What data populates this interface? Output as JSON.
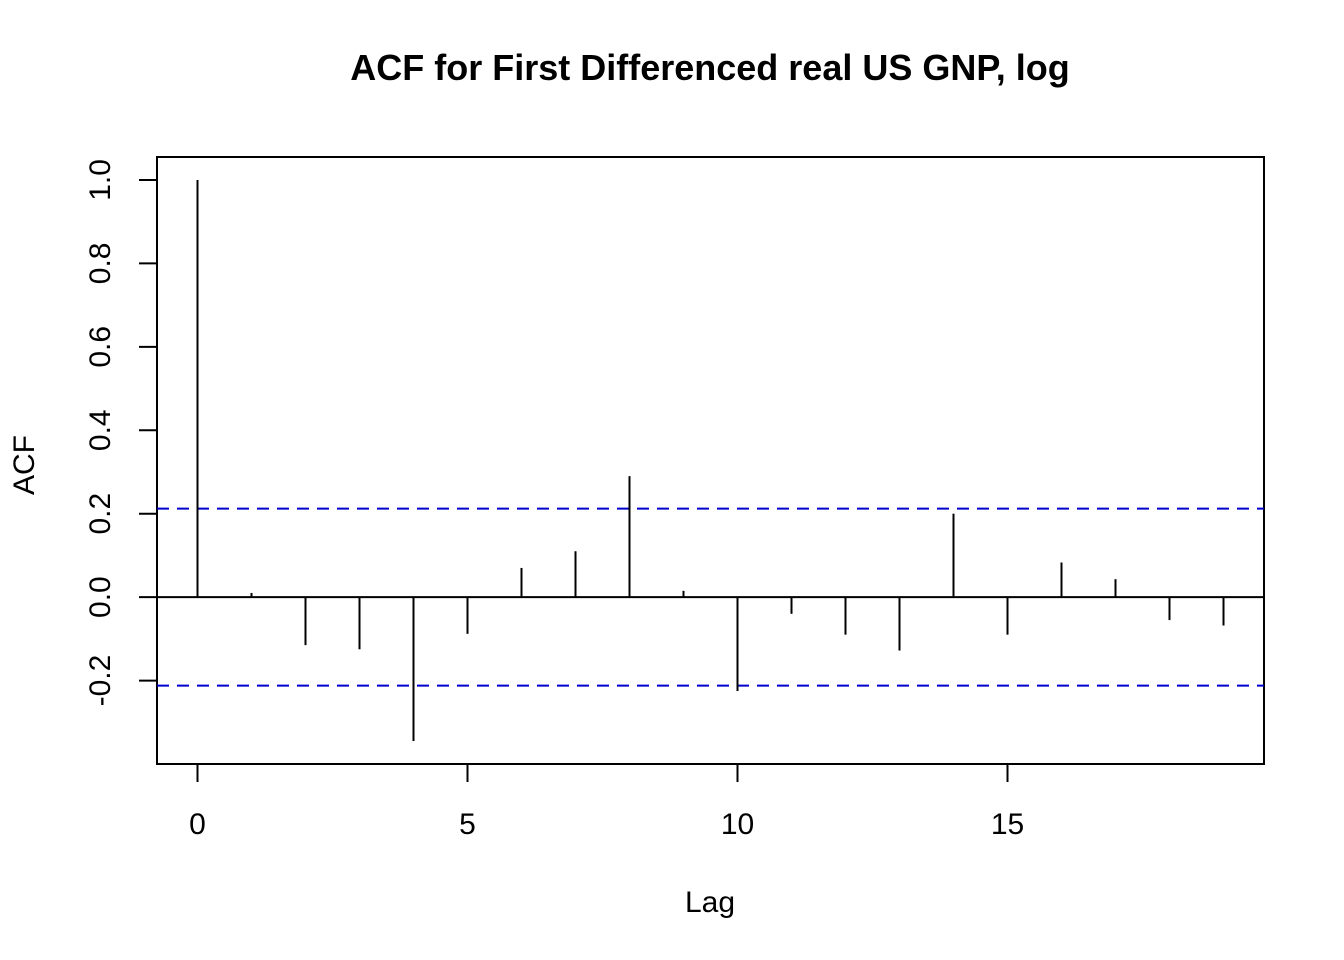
{
  "chart_data": {
    "type": "bar",
    "title": "ACF for First Differenced real US GNP, log",
    "xlabel": "Lag",
    "ylabel": "ACF",
    "x": [
      0,
      1,
      2,
      3,
      4,
      5,
      6,
      7,
      8,
      9,
      10,
      11,
      12,
      13,
      14,
      15,
      16,
      17,
      18,
      19
    ],
    "values": [
      1.0,
      0.01,
      -0.115,
      -0.125,
      -0.345,
      -0.088,
      0.07,
      0.11,
      0.29,
      0.015,
      -0.225,
      -0.04,
      -0.09,
      -0.128,
      0.2,
      -0.09,
      0.083,
      0.043,
      -0.055,
      -0.068
    ],
    "confidence_bound": 0.212,
    "xlim": [
      -0.75,
      19.75
    ],
    "ylim": [
      -0.4,
      1.055
    ],
    "xticks": [
      "0",
      "5",
      "10",
      "15"
    ],
    "yticks": [
      "-0.2",
      "0.0",
      "0.2",
      "0.4",
      "0.6",
      "0.8",
      "1.0"
    ],
    "bound_color": "#0000cc",
    "line_color": "#000000",
    "grid": false
  }
}
